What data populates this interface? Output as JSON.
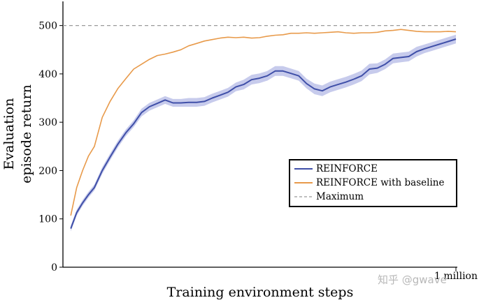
{
  "chart_data": {
    "type": "line",
    "xlabel": "Training environment steps",
    "ylabel_line1": "Evaluation",
    "ylabel_line2": "episode return",
    "x_tick_label": "1 million",
    "xlim": [
      0,
      1000000
    ],
    "ylim": [
      0,
      550
    ],
    "yticks": [
      0,
      100,
      200,
      300,
      400,
      500
    ],
    "legend_position": "center-right",
    "series": [
      {
        "name": "REINFORCE",
        "color": "#3f4fa8",
        "band_color": "#b4b9e6",
        "x": [
          20000,
          35000,
          50000,
          65000,
          80000,
          100000,
          120000,
          140000,
          160000,
          180000,
          200000,
          220000,
          240000,
          260000,
          280000,
          300000,
          320000,
          340000,
          360000,
          380000,
          400000,
          420000,
          440000,
          460000,
          480000,
          500000,
          520000,
          540000,
          560000,
          580000,
          600000,
          620000,
          640000,
          660000,
          680000,
          700000,
          720000,
          740000,
          760000,
          780000,
          800000,
          820000,
          840000,
          860000,
          880000,
          900000,
          920000,
          940000,
          960000,
          980000,
          1000000
        ],
        "y": [
          80,
          113,
          133,
          150,
          165,
          200,
          228,
          255,
          278,
          297,
          320,
          332,
          339,
          346,
          340,
          340,
          341,
          341,
          343,
          350,
          356,
          362,
          373,
          378,
          388,
          391,
          396,
          406,
          406,
          401,
          396,
          380,
          369,
          365,
          373,
          378,
          383,
          389,
          396,
          410,
          412,
          420,
          432,
          434,
          436,
          446,
          452,
          457,
          462,
          467,
          472
        ],
        "band": [
          6,
          6,
          6,
          6,
          6,
          7,
          7,
          7,
          7,
          7,
          8,
          8,
          8,
          8,
          8,
          8,
          9,
          9,
          9,
          9,
          9,
          9,
          9,
          10,
          10,
          10,
          10,
          10,
          10,
          10,
          10,
          10,
          11,
          11,
          11,
          11,
          11,
          11,
          11,
          11,
          10,
          10,
          10,
          10,
          10,
          10,
          9,
          9,
          9,
          9,
          9
        ]
      },
      {
        "name": "REINFORCE with baseline",
        "color": "#e89a4a",
        "x": [
          20000,
          35000,
          50000,
          65000,
          80000,
          100000,
          120000,
          140000,
          160000,
          180000,
          200000,
          220000,
          240000,
          260000,
          280000,
          300000,
          320000,
          340000,
          360000,
          380000,
          400000,
          420000,
          440000,
          460000,
          480000,
          500000,
          520000,
          540000,
          560000,
          580000,
          600000,
          620000,
          640000,
          660000,
          680000,
          700000,
          720000,
          740000,
          760000,
          780000,
          800000,
          820000,
          840000,
          860000,
          880000,
          900000,
          920000,
          940000,
          960000,
          980000,
          1000000
        ],
        "y": [
          107,
          165,
          200,
          230,
          250,
          310,
          343,
          370,
          390,
          410,
          420,
          430,
          438,
          441,
          445,
          450,
          458,
          463,
          468,
          471,
          474,
          476,
          475,
          476,
          474,
          475,
          478,
          480,
          481,
          484,
          484,
          485,
          484,
          485,
          486,
          487,
          485,
          484,
          485,
          485,
          486,
          489,
          490,
          492,
          490,
          488,
          487,
          487,
          487,
          488,
          487
        ]
      },
      {
        "name": "Maximum",
        "color": "#999999",
        "dashed": true,
        "y_value": 500
      }
    ]
  },
  "watermark": "知乎 @gwave"
}
